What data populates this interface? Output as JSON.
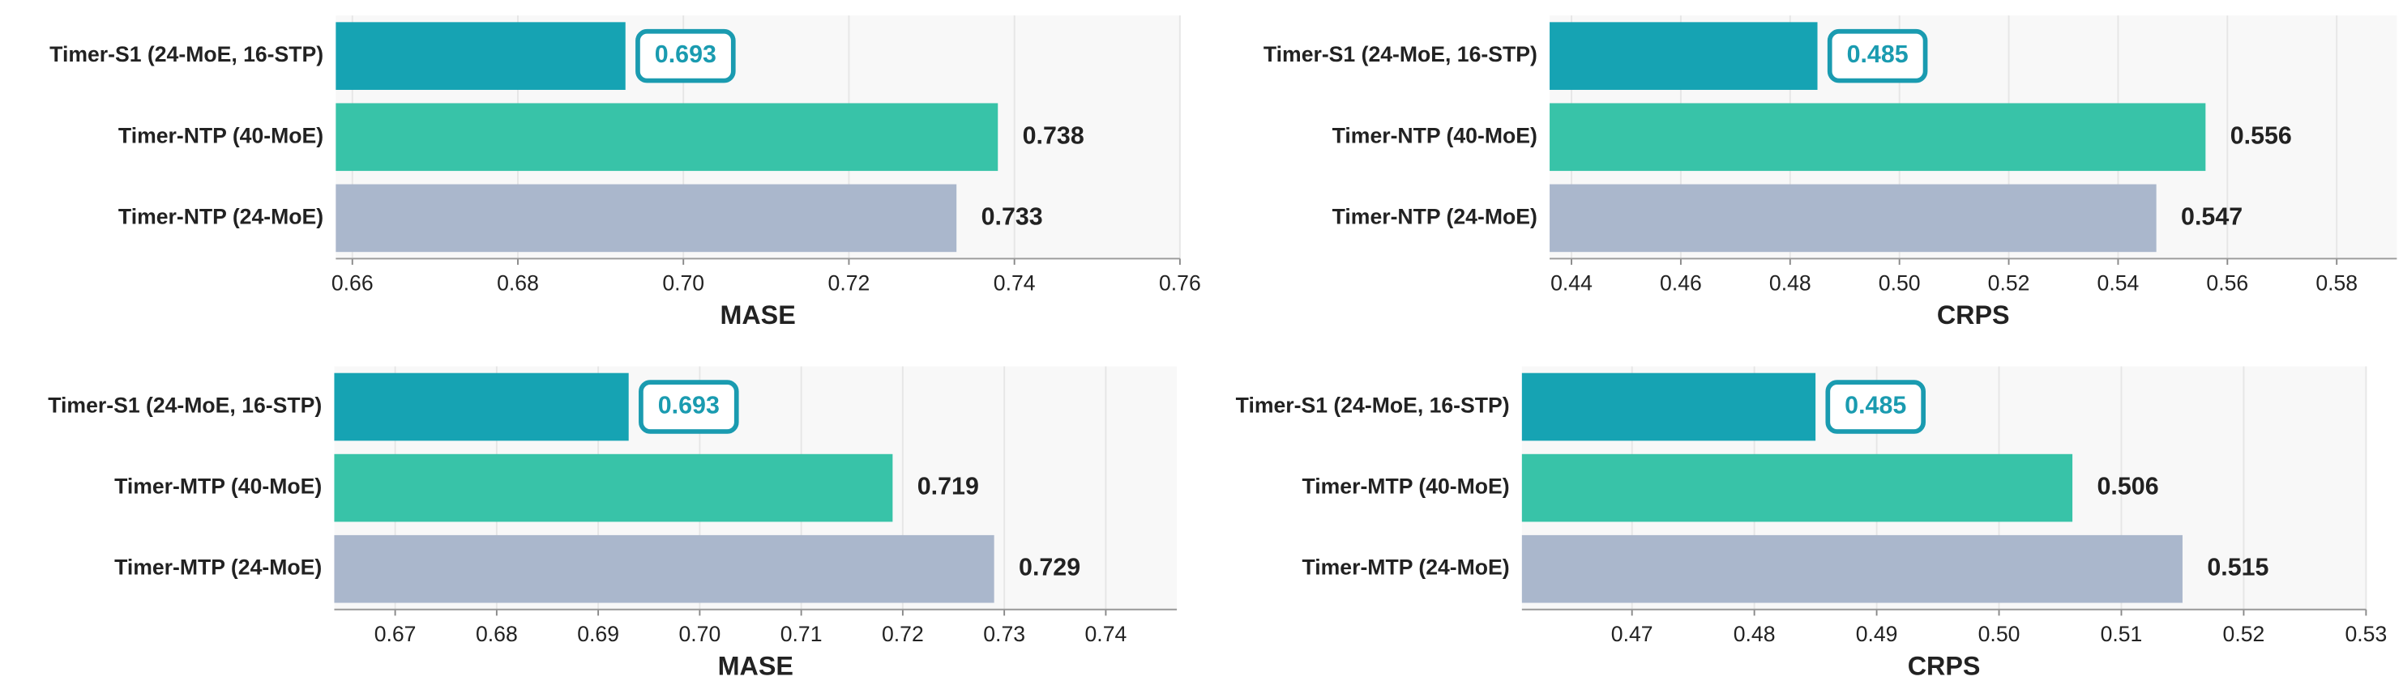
{
  "chart_data": [
    {
      "type": "barh",
      "categories": [
        "Timer-S1 (24-MoE, 16-STP)",
        "Timer-NTP (40-MoE)",
        "Timer-NTP (24-MoE)"
      ],
      "values": [
        0.693,
        0.738,
        0.733
      ],
      "colors": [
        "#16a3b3",
        "#38c3a8",
        "#aab7cc"
      ],
      "highlight_color": "#1a9bb0",
      "xlabel": "MASE",
      "xlim": [
        0.658,
        0.76
      ],
      "xticks": [
        0.66,
        0.68,
        {
          "value": 0.7,
          "label": "0.70"
        },
        0.72,
        0.74,
        0.76
      ],
      "grid": true
    },
    {
      "type": "barh",
      "categories": [
        "Timer-S1 (24-MoE, 16-STP)",
        "Timer-NTP (40-MoE)",
        "Timer-NTP (24-MoE)"
      ],
      "values": [
        0.485,
        0.556,
        0.547
      ],
      "colors": [
        "#16a3b3",
        "#38c3a8",
        "#aab7cc"
      ],
      "highlight_color": "#1a9bb0",
      "xlabel": "CRPS",
      "xlim": [
        0.436,
        0.591
      ],
      "xticks": [
        0.44,
        0.46,
        0.48,
        {
          "value": 0.5,
          "label": "0.50"
        },
        0.52,
        0.54,
        0.56,
        0.58
      ],
      "grid": true
    },
    {
      "type": "barh",
      "categories": [
        "Timer-S1 (24-MoE, 16-STP)",
        "Timer-MTP (40-MoE)",
        "Timer-MTP (24-MoE)"
      ],
      "values": [
        0.693,
        0.719,
        0.729
      ],
      "colors": [
        "#16a3b3",
        "#38c3a8",
        "#aab7cc"
      ],
      "highlight_color": "#1a9bb0",
      "xlabel": "MASE",
      "xlim": [
        0.664,
        0.747
      ],
      "xticks": [
        0.67,
        0.68,
        0.69,
        {
          "value": 0.7,
          "label": "0.70"
        },
        0.71,
        0.72,
        0.73,
        0.74
      ],
      "grid": true
    },
    {
      "type": "barh",
      "categories": [
        "Timer-S1 (24-MoE, 16-STP)",
        "Timer-MTP (40-MoE)",
        "Timer-MTP (24-MoE)"
      ],
      "values": [
        0.485,
        0.506,
        0.515
      ],
      "colors": [
        "#16a3b3",
        "#38c3a8",
        "#aab7cc"
      ],
      "highlight_color": "#1a9bb0",
      "xlabel": "CRPS",
      "xlim": [
        0.461,
        0.53
      ],
      "xticks": [
        0.47,
        0.48,
        0.49,
        {
          "value": 0.5,
          "label": "0.50"
        },
        0.51,
        0.52,
        0.53
      ],
      "grid": true
    }
  ]
}
